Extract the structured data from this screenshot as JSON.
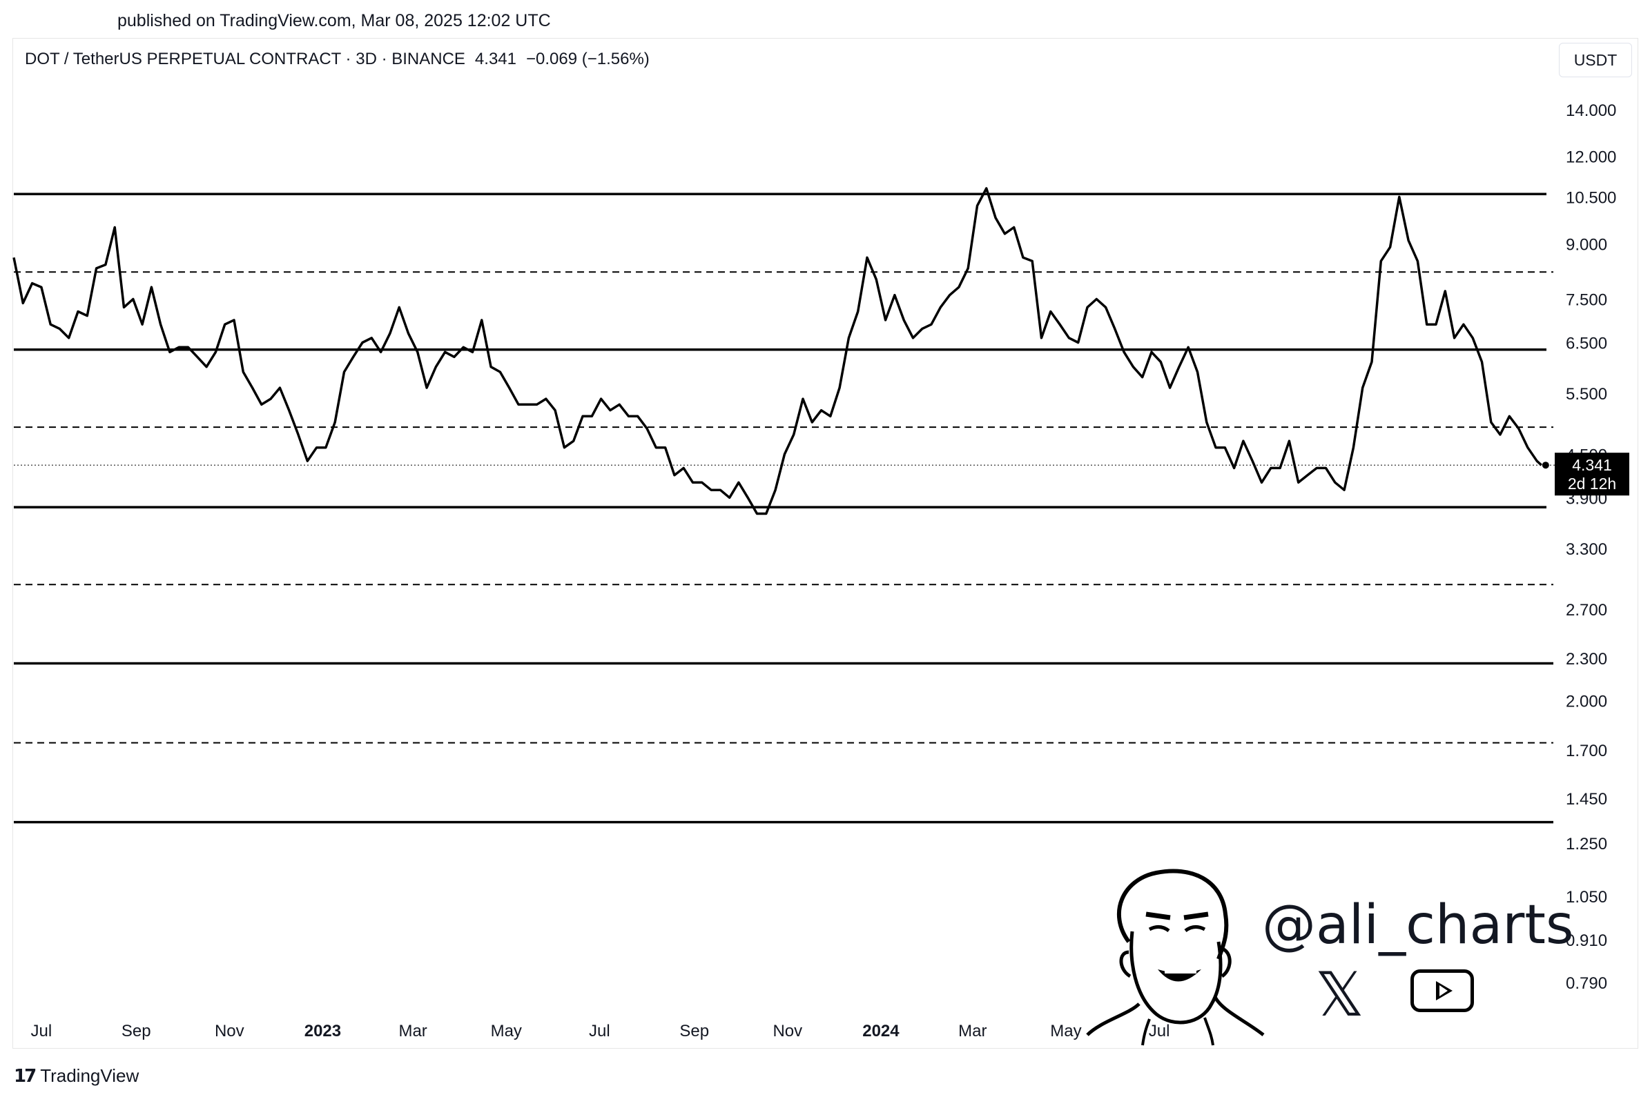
{
  "header": {
    "published": "published on TradingView.com, Mar 08, 2025 12:02 UTC"
  },
  "symbol": {
    "name": "DOT / TetherUS PERPETUAL CONTRACT · 3D · BINANCE",
    "last": "4.341",
    "change": "−0.069 (−1.56%)"
  },
  "currency": "USDT",
  "price_label": {
    "value": "4.341",
    "countdown": "2d 12h"
  },
  "watermark": {
    "handle": "@ali_charts",
    "x_icon": "x-logo-icon",
    "youtube_icon": "youtube-icon"
  },
  "footer": {
    "brand": "TradingView"
  },
  "colors": {
    "line": "#000000",
    "background": "#ffffff",
    "price_label_bg": "#000000"
  },
  "chart_data": {
    "type": "line",
    "scale": "log",
    "ylim": [
      0.72,
      16.0
    ],
    "xlim": [
      "2022-06-13",
      "2025-03-18"
    ],
    "y_ticks": [
      "14.000",
      "12.000",
      "10.500",
      "9.000",
      "7.500",
      "6.500",
      "5.500",
      "4.500",
      "3.900",
      "3.300",
      "2.700",
      "2.300",
      "2.000",
      "1.700",
      "1.450",
      "1.250",
      "1.050",
      "0.910",
      "0.790"
    ],
    "x_ticks": [
      {
        "date": "2022-07-01",
        "label": "Jul",
        "bold": false
      },
      {
        "date": "2022-09-01",
        "label": "Sep",
        "bold": false
      },
      {
        "date": "2022-11-01",
        "label": "Nov",
        "bold": false
      },
      {
        "date": "2023-01-01",
        "label": "2023",
        "bold": true
      },
      {
        "date": "2023-03-01",
        "label": "Mar",
        "bold": false
      },
      {
        "date": "2023-05-01",
        "label": "May",
        "bold": false
      },
      {
        "date": "2023-07-01",
        "label": "Jul",
        "bold": false
      },
      {
        "date": "2023-09-01",
        "label": "Sep",
        "bold": false
      },
      {
        "date": "2023-11-01",
        "label": "Nov",
        "bold": false
      },
      {
        "date": "2024-01-01",
        "label": "2024",
        "bold": true
      },
      {
        "date": "2024-03-01",
        "label": "Mar",
        "bold": false
      },
      {
        "date": "2024-05-01",
        "label": "May",
        "bold": false
      },
      {
        "date": "2024-07-01",
        "label": "Jul",
        "bold": false
      }
    ],
    "levels": [
      {
        "price": 10.6,
        "style": "solid"
      },
      {
        "price": 8.2,
        "style": "dashed"
      },
      {
        "price": 6.35,
        "style": "solid"
      },
      {
        "price": 4.92,
        "style": "dashed"
      },
      {
        "price": 3.78,
        "style": "solid"
      },
      {
        "price": 2.93,
        "style": "dashed"
      },
      {
        "price": 2.26,
        "style": "solid"
      },
      {
        "price": 1.74,
        "style": "dashed"
      },
      {
        "price": 1.34,
        "style": "solid"
      }
    ],
    "last_price": 4.341,
    "series": [
      {
        "values": [
          [
            "2022-06-13",
            8.6
          ],
          [
            "2022-06-19",
            7.4
          ],
          [
            "2022-06-25",
            7.9
          ],
          [
            "2022-07-01",
            7.8
          ],
          [
            "2022-07-07",
            6.9
          ],
          [
            "2022-07-13",
            6.8
          ],
          [
            "2022-07-19",
            6.6
          ],
          [
            "2022-07-25",
            7.2
          ],
          [
            "2022-07-31",
            7.1
          ],
          [
            "2022-08-06",
            8.3
          ],
          [
            "2022-08-12",
            8.4
          ],
          [
            "2022-08-18",
            9.5
          ],
          [
            "2022-08-24",
            7.3
          ],
          [
            "2022-08-30",
            7.5
          ],
          [
            "2022-09-05",
            6.9
          ],
          [
            "2022-09-11",
            7.8
          ],
          [
            "2022-09-17",
            6.9
          ],
          [
            "2022-09-23",
            6.3
          ],
          [
            "2022-09-29",
            6.4
          ],
          [
            "2022-10-05",
            6.4
          ],
          [
            "2022-10-11",
            6.2
          ],
          [
            "2022-10-17",
            6.0
          ],
          [
            "2022-10-23",
            6.3
          ],
          [
            "2022-10-29",
            6.9
          ],
          [
            "2022-11-04",
            7.0
          ],
          [
            "2022-11-10",
            5.9
          ],
          [
            "2022-11-16",
            5.6
          ],
          [
            "2022-11-22",
            5.3
          ],
          [
            "2022-11-28",
            5.4
          ],
          [
            "2022-12-04",
            5.6
          ],
          [
            "2022-12-10",
            5.2
          ],
          [
            "2022-12-16",
            4.8
          ],
          [
            "2022-12-22",
            4.4
          ],
          [
            "2022-12-28",
            4.6
          ],
          [
            "2023-01-03",
            4.6
          ],
          [
            "2023-01-09",
            5.0
          ],
          [
            "2023-01-15",
            5.9
          ],
          [
            "2023-01-21",
            6.2
          ],
          [
            "2023-01-27",
            6.5
          ],
          [
            "2023-02-02",
            6.6
          ],
          [
            "2023-02-08",
            6.3
          ],
          [
            "2023-02-14",
            6.7
          ],
          [
            "2023-02-20",
            7.3
          ],
          [
            "2023-02-26",
            6.7
          ],
          [
            "2023-03-04",
            6.3
          ],
          [
            "2023-03-10",
            5.6
          ],
          [
            "2023-03-16",
            6.0
          ],
          [
            "2023-03-22",
            6.3
          ],
          [
            "2023-03-28",
            6.2
          ],
          [
            "2023-04-03",
            6.4
          ],
          [
            "2023-04-09",
            6.3
          ],
          [
            "2023-04-15",
            7.0
          ],
          [
            "2023-04-21",
            6.0
          ],
          [
            "2023-04-27",
            5.9
          ],
          [
            "2023-05-03",
            5.6
          ],
          [
            "2023-05-09",
            5.3
          ],
          [
            "2023-05-15",
            5.3
          ],
          [
            "2023-05-21",
            5.3
          ],
          [
            "2023-05-27",
            5.4
          ],
          [
            "2023-06-02",
            5.2
          ],
          [
            "2023-06-08",
            4.6
          ],
          [
            "2023-06-14",
            4.7
          ],
          [
            "2023-06-20",
            5.1
          ],
          [
            "2023-06-26",
            5.1
          ],
          [
            "2023-07-02",
            5.4
          ],
          [
            "2023-07-08",
            5.2
          ],
          [
            "2023-07-14",
            5.3
          ],
          [
            "2023-07-20",
            5.1
          ],
          [
            "2023-07-26",
            5.1
          ],
          [
            "2023-08-01",
            4.9
          ],
          [
            "2023-08-07",
            4.6
          ],
          [
            "2023-08-13",
            4.6
          ],
          [
            "2023-08-19",
            4.2
          ],
          [
            "2023-08-25",
            4.3
          ],
          [
            "2023-08-31",
            4.1
          ],
          [
            "2023-09-06",
            4.1
          ],
          [
            "2023-09-12",
            4.0
          ],
          [
            "2023-09-18",
            4.0
          ],
          [
            "2023-09-24",
            3.9
          ],
          [
            "2023-09-30",
            4.1
          ],
          [
            "2023-10-06",
            3.9
          ],
          [
            "2023-10-12",
            3.7
          ],
          [
            "2023-10-18",
            3.7
          ],
          [
            "2023-10-24",
            4.0
          ],
          [
            "2023-10-30",
            4.5
          ],
          [
            "2023-11-05",
            4.8
          ],
          [
            "2023-11-11",
            5.4
          ],
          [
            "2023-11-17",
            5.0
          ],
          [
            "2023-11-23",
            5.2
          ],
          [
            "2023-11-29",
            5.1
          ],
          [
            "2023-12-05",
            5.6
          ],
          [
            "2023-12-11",
            6.6
          ],
          [
            "2023-12-17",
            7.2
          ],
          [
            "2023-12-23",
            8.6
          ],
          [
            "2023-12-29",
            8.0
          ],
          [
            "2024-01-04",
            7.0
          ],
          [
            "2024-01-10",
            7.6
          ],
          [
            "2024-01-16",
            7.0
          ],
          [
            "2024-01-22",
            6.6
          ],
          [
            "2024-01-28",
            6.8
          ],
          [
            "2024-02-03",
            6.9
          ],
          [
            "2024-02-09",
            7.3
          ],
          [
            "2024-02-15",
            7.6
          ],
          [
            "2024-02-21",
            7.8
          ],
          [
            "2024-02-27",
            8.3
          ],
          [
            "2024-03-04",
            10.2
          ],
          [
            "2024-03-10",
            10.8
          ],
          [
            "2024-03-16",
            9.8
          ],
          [
            "2024-03-22",
            9.3
          ],
          [
            "2024-03-28",
            9.5
          ],
          [
            "2024-04-03",
            8.6
          ],
          [
            "2024-04-09",
            8.5
          ],
          [
            "2024-04-15",
            6.6
          ],
          [
            "2024-04-21",
            7.2
          ],
          [
            "2024-04-27",
            6.9
          ],
          [
            "2024-05-03",
            6.6
          ],
          [
            "2024-05-09",
            6.5
          ],
          [
            "2024-05-15",
            7.3
          ],
          [
            "2024-05-21",
            7.5
          ],
          [
            "2024-05-27",
            7.3
          ],
          [
            "2024-06-02",
            6.8
          ],
          [
            "2024-06-08",
            6.3
          ],
          [
            "2024-06-14",
            6.0
          ],
          [
            "2024-06-20",
            5.8
          ],
          [
            "2024-06-26",
            6.3
          ],
          [
            "2024-07-02",
            6.1
          ],
          [
            "2024-07-08",
            5.6
          ],
          [
            "2024-07-14",
            6.0
          ],
          [
            "2024-07-20",
            6.4
          ],
          [
            "2024-07-26",
            5.9
          ],
          [
            "2024-08-01",
            5.0
          ],
          [
            "2024-08-07",
            4.6
          ],
          [
            "2024-08-13",
            4.6
          ],
          [
            "2024-08-19",
            4.3
          ],
          [
            "2024-08-25",
            4.7
          ],
          [
            "2024-08-31",
            4.4
          ],
          [
            "2024-09-06",
            4.1
          ],
          [
            "2024-09-12",
            4.3
          ],
          [
            "2024-09-18",
            4.3
          ],
          [
            "2024-09-24",
            4.7
          ],
          [
            "2024-09-30",
            4.1
          ],
          [
            "2024-10-06",
            4.2
          ],
          [
            "2024-10-12",
            4.3
          ],
          [
            "2024-10-18",
            4.3
          ],
          [
            "2024-10-24",
            4.1
          ],
          [
            "2024-10-30",
            4.0
          ],
          [
            "2024-11-05",
            4.6
          ],
          [
            "2024-11-11",
            5.6
          ],
          [
            "2024-11-17",
            6.1
          ],
          [
            "2024-11-23",
            8.5
          ],
          [
            "2024-11-29",
            8.9
          ],
          [
            "2024-12-05",
            10.5
          ],
          [
            "2024-12-11",
            9.1
          ],
          [
            "2024-12-17",
            8.5
          ],
          [
            "2024-12-23",
            6.9
          ],
          [
            "2024-12-29",
            6.9
          ],
          [
            "2025-01-04",
            7.7
          ],
          [
            "2025-01-10",
            6.6
          ],
          [
            "2025-01-16",
            6.9
          ],
          [
            "2025-01-22",
            6.6
          ],
          [
            "2025-01-28",
            6.1
          ],
          [
            "2025-02-03",
            5.0
          ],
          [
            "2025-02-09",
            4.8
          ],
          [
            "2025-02-15",
            5.1
          ],
          [
            "2025-02-21",
            4.9
          ],
          [
            "2025-02-27",
            4.6
          ],
          [
            "2025-03-05",
            4.4
          ],
          [
            "2025-03-08",
            4.341
          ]
        ]
      }
    ]
  }
}
